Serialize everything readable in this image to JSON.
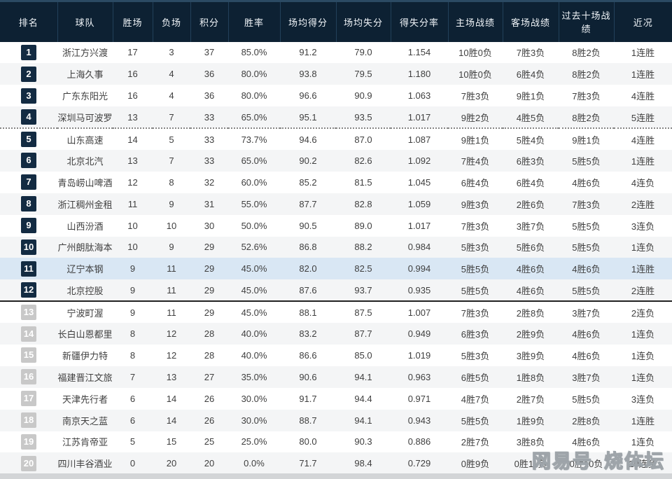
{
  "header": {
    "columns": [
      "排名",
      "球队",
      "胜场",
      "负场",
      "积分",
      "胜率",
      "场均得分",
      "场均失分",
      "得失分率",
      "主场战绩",
      "客场战绩",
      "过去十场战绩",
      "近况"
    ]
  },
  "rows": [
    {
      "rank": "1",
      "team": "浙江方兴渡",
      "wins": "17",
      "losses": "3",
      "points": "37",
      "win_rate": "85.0%",
      "avg_scored": "91.2",
      "avg_allowed": "79.0",
      "ratio": "1.154",
      "home": "10胜0负",
      "away": "7胜3负",
      "last10": "8胜2负",
      "streak": "1连胜",
      "badge": "dark",
      "highlight": false,
      "sep": ""
    },
    {
      "rank": "2",
      "team": "上海久事",
      "wins": "16",
      "losses": "4",
      "points": "36",
      "win_rate": "80.0%",
      "avg_scored": "93.8",
      "avg_allowed": "79.5",
      "ratio": "1.180",
      "home": "10胜0负",
      "away": "6胜4负",
      "last10": "8胜2负",
      "streak": "1连胜",
      "badge": "dark",
      "highlight": false,
      "sep": ""
    },
    {
      "rank": "3",
      "team": "广东东阳光",
      "wins": "16",
      "losses": "4",
      "points": "36",
      "win_rate": "80.0%",
      "avg_scored": "96.6",
      "avg_allowed": "90.9",
      "ratio": "1.063",
      "home": "7胜3负",
      "away": "9胜1负",
      "last10": "7胜3负",
      "streak": "4连胜",
      "badge": "dark",
      "highlight": false,
      "sep": ""
    },
    {
      "rank": "4",
      "team": "深圳马可波罗",
      "wins": "13",
      "losses": "7",
      "points": "33",
      "win_rate": "65.0%",
      "avg_scored": "95.1",
      "avg_allowed": "93.5",
      "ratio": "1.017",
      "home": "9胜2负",
      "away": "4胜5负",
      "last10": "8胜2负",
      "streak": "5连胜",
      "badge": "dark",
      "highlight": false,
      "sep": "dashed"
    },
    {
      "rank": "5",
      "team": "山东高速",
      "wins": "14",
      "losses": "5",
      "points": "33",
      "win_rate": "73.7%",
      "avg_scored": "94.6",
      "avg_allowed": "87.0",
      "ratio": "1.087",
      "home": "9胜1负",
      "away": "5胜4负",
      "last10": "9胜1负",
      "streak": "4连胜",
      "badge": "dark",
      "highlight": false,
      "sep": ""
    },
    {
      "rank": "6",
      "team": "北京北汽",
      "wins": "13",
      "losses": "7",
      "points": "33",
      "win_rate": "65.0%",
      "avg_scored": "90.2",
      "avg_allowed": "82.6",
      "ratio": "1.092",
      "home": "7胜4负",
      "away": "6胜3负",
      "last10": "5胜5负",
      "streak": "1连胜",
      "badge": "dark",
      "highlight": false,
      "sep": ""
    },
    {
      "rank": "7",
      "team": "青岛崂山啤酒",
      "wins": "12",
      "losses": "8",
      "points": "32",
      "win_rate": "60.0%",
      "avg_scored": "85.2",
      "avg_allowed": "81.5",
      "ratio": "1.045",
      "home": "6胜4负",
      "away": "6胜4负",
      "last10": "4胜6负",
      "streak": "4连负",
      "badge": "dark",
      "highlight": false,
      "sep": ""
    },
    {
      "rank": "8",
      "team": "浙江稠州金租",
      "wins": "11",
      "losses": "9",
      "points": "31",
      "win_rate": "55.0%",
      "avg_scored": "87.7",
      "avg_allowed": "82.8",
      "ratio": "1.059",
      "home": "9胜3负",
      "away": "2胜6负",
      "last10": "7胜3负",
      "streak": "2连胜",
      "badge": "dark",
      "highlight": false,
      "sep": ""
    },
    {
      "rank": "9",
      "team": "山西汾酒",
      "wins": "10",
      "losses": "10",
      "points": "30",
      "win_rate": "50.0%",
      "avg_scored": "90.5",
      "avg_allowed": "89.0",
      "ratio": "1.017",
      "home": "7胜3负",
      "away": "3胜7负",
      "last10": "5胜5负",
      "streak": "3连负",
      "badge": "dark",
      "highlight": false,
      "sep": ""
    },
    {
      "rank": "10",
      "team": "广州朗肽海本",
      "wins": "10",
      "losses": "9",
      "points": "29",
      "win_rate": "52.6%",
      "avg_scored": "86.8",
      "avg_allowed": "88.2",
      "ratio": "0.984",
      "home": "5胜3负",
      "away": "5胜6负",
      "last10": "5胜5负",
      "streak": "1连负",
      "badge": "dark",
      "highlight": false,
      "sep": ""
    },
    {
      "rank": "11",
      "team": "辽宁本钢",
      "wins": "9",
      "losses": "11",
      "points": "29",
      "win_rate": "45.0%",
      "avg_scored": "82.0",
      "avg_allowed": "82.5",
      "ratio": "0.994",
      "home": "5胜5负",
      "away": "4胜6负",
      "last10": "4胜6负",
      "streak": "1连胜",
      "badge": "dark",
      "highlight": true,
      "sep": ""
    },
    {
      "rank": "12",
      "team": "北京控股",
      "wins": "9",
      "losses": "11",
      "points": "29",
      "win_rate": "45.0%",
      "avg_scored": "87.6",
      "avg_allowed": "93.7",
      "ratio": "0.935",
      "home": "5胜5负",
      "away": "4胜6负",
      "last10": "5胜5负",
      "streak": "2连胜",
      "badge": "dark",
      "highlight": false,
      "sep": "solid"
    },
    {
      "rank": "13",
      "team": "宁波町渥",
      "wins": "9",
      "losses": "11",
      "points": "29",
      "win_rate": "45.0%",
      "avg_scored": "88.1",
      "avg_allowed": "87.5",
      "ratio": "1.007",
      "home": "7胜3负",
      "away": "2胜8负",
      "last10": "3胜7负",
      "streak": "2连负",
      "badge": "gray",
      "highlight": false,
      "sep": ""
    },
    {
      "rank": "14",
      "team": "长白山恩都里",
      "wins": "8",
      "losses": "12",
      "points": "28",
      "win_rate": "40.0%",
      "avg_scored": "83.2",
      "avg_allowed": "87.7",
      "ratio": "0.949",
      "home": "6胜3负",
      "away": "2胜9负",
      "last10": "4胜6负",
      "streak": "1连负",
      "badge": "gray",
      "highlight": false,
      "sep": ""
    },
    {
      "rank": "15",
      "team": "新疆伊力特",
      "wins": "8",
      "losses": "12",
      "points": "28",
      "win_rate": "40.0%",
      "avg_scored": "86.6",
      "avg_allowed": "85.0",
      "ratio": "1.019",
      "home": "5胜3负",
      "away": "3胜9负",
      "last10": "4胜6负",
      "streak": "1连负",
      "badge": "gray",
      "highlight": false,
      "sep": ""
    },
    {
      "rank": "16",
      "team": "福建晋江文旅",
      "wins": "7",
      "losses": "13",
      "points": "27",
      "win_rate": "35.0%",
      "avg_scored": "90.6",
      "avg_allowed": "94.1",
      "ratio": "0.963",
      "home": "6胜5负",
      "away": "1胜8负",
      "last10": "3胜7负",
      "streak": "1连负",
      "badge": "gray",
      "highlight": false,
      "sep": ""
    },
    {
      "rank": "17",
      "team": "天津先行者",
      "wins": "6",
      "losses": "14",
      "points": "26",
      "win_rate": "30.0%",
      "avg_scored": "91.7",
      "avg_allowed": "94.4",
      "ratio": "0.971",
      "home": "4胜7负",
      "away": "2胜7负",
      "last10": "5胜5负",
      "streak": "3连负",
      "badge": "gray",
      "highlight": false,
      "sep": ""
    },
    {
      "rank": "18",
      "team": "南京天之蓝",
      "wins": "6",
      "losses": "14",
      "points": "26",
      "win_rate": "30.0%",
      "avg_scored": "88.7",
      "avg_allowed": "94.1",
      "ratio": "0.943",
      "home": "5胜5负",
      "away": "1胜9负",
      "last10": "2胜8负",
      "streak": "1连胜",
      "badge": "gray",
      "highlight": false,
      "sep": ""
    },
    {
      "rank": "19",
      "team": "江苏肯帝亚",
      "wins": "5",
      "losses": "15",
      "points": "25",
      "win_rate": "25.0%",
      "avg_scored": "80.0",
      "avg_allowed": "90.3",
      "ratio": "0.886",
      "home": "2胜7负",
      "away": "3胜8负",
      "last10": "4胜6负",
      "streak": "1连负",
      "badge": "gray",
      "highlight": false,
      "sep": ""
    },
    {
      "rank": "20",
      "team": "四川丰谷酒业",
      "wins": "0",
      "losses": "20",
      "points": "20",
      "win_rate": "0.0%",
      "avg_scored": "71.7",
      "avg_allowed": "98.4",
      "ratio": "0.729",
      "home": "0胜9负",
      "away": "0胜11负",
      "last10": "0胜10负",
      "streak": "20连负",
      "badge": "gray",
      "highlight": false,
      "sep": ""
    }
  ],
  "watermark": {
    "brand": "网易号",
    "name": "烧体坛"
  },
  "colors": {
    "header_bg": "#0d2133",
    "header_separator": "#22405a",
    "header_top_edge": "#2b4a63",
    "badge_dark": "#132b42",
    "badge_gray": "#c8c8c8",
    "row_alt": "#f4f5f6",
    "row_highlight": "#d9e7f4",
    "text": "#3f3f3f",
    "separator_dashed": "#848484",
    "separator_solid": "#222222",
    "bottom_bar": "#d3d5d7"
  }
}
